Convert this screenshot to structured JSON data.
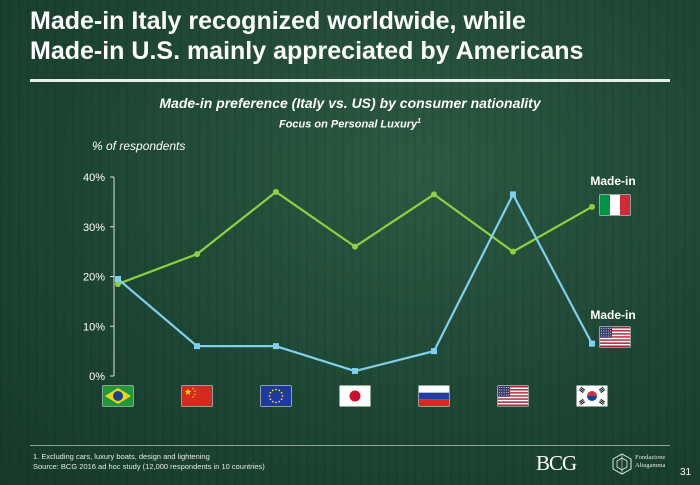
{
  "slide": {
    "title_line1": "Made-in Italy recognized worldwide, while",
    "title_line2": "Made-in U.S. mainly appreciated by Americans",
    "page_number": "31"
  },
  "chart_data": {
    "type": "line",
    "title": "Made-in preference (Italy vs. US) by consumer nationality",
    "subtitle": "Focus on Personal Luxury",
    "subtitle_footnote_marker": "1",
    "ylabel": "% of respondents",
    "ylim": [
      0,
      40
    ],
    "yticks": [
      0,
      10,
      20,
      30,
      40
    ],
    "ytick_labels": [
      "0%",
      "10%",
      "20%",
      "30%",
      "40%"
    ],
    "categories": [
      "Brazil",
      "China",
      "European Union",
      "Japan",
      "Russia",
      "United States",
      "South Korea"
    ],
    "series": [
      {
        "name": "Made-in Italy",
        "label": "Made-in",
        "flag": "italy-flag",
        "color": "#8ed13f",
        "marker": "circle",
        "values": [
          18.5,
          24.5,
          37,
          26,
          36.5,
          25,
          34
        ]
      },
      {
        "name": "Made-in US",
        "label": "Made-in",
        "flag": "us-flag",
        "color": "#7fd0ec",
        "marker": "square",
        "values": [
          19.5,
          6,
          6,
          1,
          5,
          36.5,
          6.5
        ]
      }
    ]
  },
  "footnotes": {
    "note1": "1. Excluding cars, luxury boats, design and lightening",
    "source": "Source: BCG 2016 ad hoc study (12,000 respondents in 10 countries)"
  },
  "branding": {
    "bcg_logo_text": "BCG",
    "partner_logo_text_line1": "Fondazione",
    "partner_logo_text_line2": "Altagamma"
  }
}
